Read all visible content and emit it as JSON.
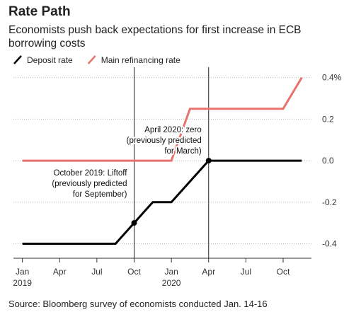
{
  "chart_data": {
    "type": "line",
    "title": "Rate Path",
    "subtitle": [
      "Economists push back expectations for first increase in ECB",
      "borrowing costs"
    ],
    "source": "Source: Bloomberg survey of economists conducted Jan. 14-16",
    "series": [
      {
        "name": "Deposit rate",
        "color": "#000000",
        "x": [
          2019.0,
          2019.625,
          2019.75,
          2019.875,
          2020.0,
          2020.25,
          2020.875
        ],
        "values": [
          -0.4,
          -0.4,
          -0.3,
          -0.2,
          -0.2,
          0.0,
          0.0
        ]
      },
      {
        "name": "Main refinancing rate",
        "color": "#e8736c",
        "x": [
          2019.0,
          2020.0,
          2020.125,
          2020.75,
          2020.875
        ],
        "values": [
          0.0,
          0.0,
          0.25,
          0.25,
          0.4
        ]
      }
    ],
    "annotations": [
      {
        "x": 2019.75,
        "y": -0.3,
        "lines": [
          "October 2019: Liftoff",
          "(previously predicted",
          "for September)"
        ]
      },
      {
        "x": 2020.25,
        "y": 0.0,
        "lines": [
          "April 2020: zero",
          "(previously predicted",
          "for March)"
        ]
      }
    ],
    "xlim": [
      2018.94,
      2020.94
    ],
    "xticks": [
      {
        "value": 2019.0,
        "label": "Jan"
      },
      {
        "value": 2019.25,
        "label": "Apr"
      },
      {
        "value": 2019.5,
        "label": "Jul"
      },
      {
        "value": 2019.75,
        "label": "Oct"
      },
      {
        "value": 2020.0,
        "label": "Jan"
      },
      {
        "value": 2020.25,
        "label": "Apr"
      },
      {
        "value": 2020.5,
        "label": "Jul"
      },
      {
        "value": 2020.75,
        "label": "Oct"
      }
    ],
    "x_years": [
      2019,
      2020
    ],
    "ylim": [
      -0.47,
      0.45
    ],
    "yticks": [
      {
        "value": 0.4,
        "label": "0.4%"
      },
      0.2,
      {
        "value": 0,
        "label": "0.0"
      },
      -0.2,
      -0.4
    ],
    "grid": true
  }
}
